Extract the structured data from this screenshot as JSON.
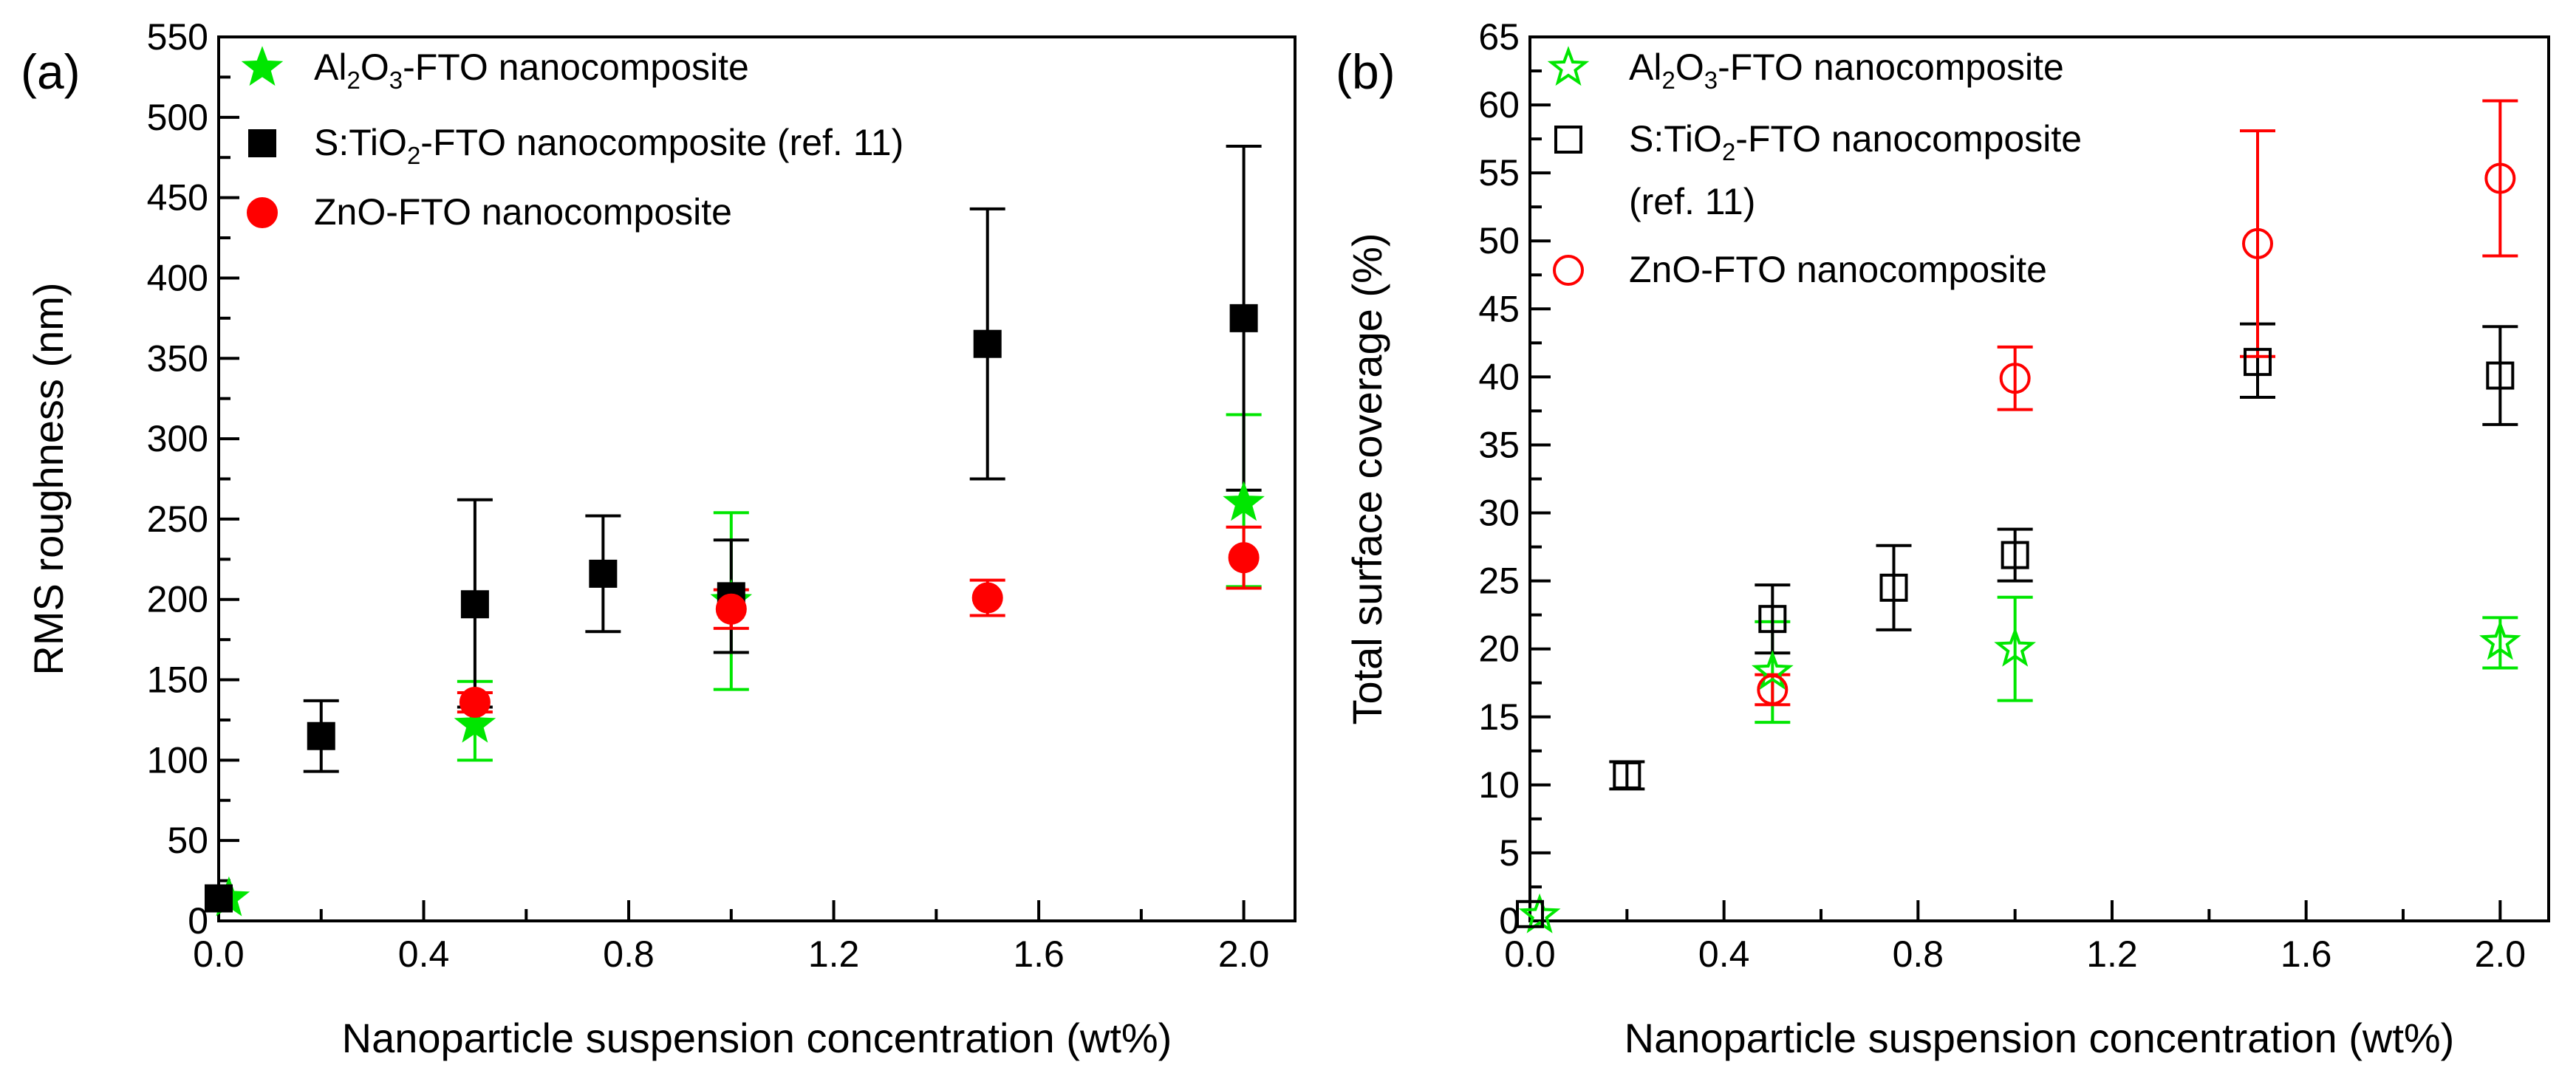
{
  "chart_data": [
    {
      "type": "scatter",
      "panel_label": "(a)",
      "xlabel": "Nanoparticle suspension concentration (wt%)",
      "ylabel": "RMS roughness (nm)",
      "xlim": [
        0.0,
        2.1
      ],
      "ylim": [
        0,
        550
      ],
      "x_ticks": [
        0.0,
        0.4,
        0.8,
        1.2,
        1.6,
        2.0
      ],
      "x_tick_labels": [
        "0.0",
        "0.4",
        "0.8",
        "1.2",
        "1.6",
        "2.0"
      ],
      "y_ticks": [
        0,
        50,
        100,
        150,
        200,
        250,
        300,
        350,
        400,
        450,
        500,
        550
      ],
      "y_tick_labels": [
        "0",
        "50",
        "100",
        "150",
        "200",
        "250",
        "300",
        "350",
        "400",
        "450",
        "500",
        "550"
      ],
      "legend_location": "top-left",
      "series": [
        {
          "name": "Al2O3-FTO nanocomposite",
          "legend_parts": [
            "Al",
            "2",
            "O",
            "3",
            "-FTO nanocomposite"
          ],
          "marker": "star",
          "filled": true,
          "color": "#00e600",
          "x": [
            0.02,
            0.5,
            1.0,
            2.0
          ],
          "y": [
            14,
            122,
            199,
            260
          ],
          "err_low": [
            0,
            22,
            55,
            52
          ],
          "err_high": [
            0,
            27,
            55,
            55
          ]
        },
        {
          "name": "S:TiO2-FTO nanocomposite (ref. 11)",
          "legend_parts": [
            "S:TiO",
            "2",
            "-FTO nanocomposite (ref. 11)"
          ],
          "marker": "square",
          "filled": true,
          "color": "#000000",
          "x": [
            0.0,
            0.2,
            0.5,
            0.75,
            1.0,
            1.5,
            2.0
          ],
          "y": [
            14,
            115,
            197,
            216,
            202,
            359,
            375
          ],
          "err_low": [
            0,
            22,
            64,
            36,
            35,
            84,
            107
          ],
          "err_high": [
            0,
            22,
            65,
            36,
            35,
            84,
            107
          ]
        },
        {
          "name": "ZnO-FTO nanocomposite",
          "legend_parts": [
            "ZnO-FTO nanocomposite"
          ],
          "marker": "circle",
          "filled": true,
          "color": "#ff0000",
          "x": [
            0.5,
            1.0,
            1.5,
            2.0
          ],
          "y": [
            136,
            194,
            201,
            226
          ],
          "err_low": [
            6,
            12,
            11,
            19
          ],
          "err_high": [
            6,
            12,
            11,
            19
          ]
        }
      ]
    },
    {
      "type": "scatter",
      "panel_label": "(b)",
      "xlabel": "Nanoparticle suspension concentration (wt%)",
      "ylabel": "Total surface coverage (%)",
      "xlim": [
        0.0,
        2.1
      ],
      "ylim": [
        0,
        65
      ],
      "x_ticks": [
        0.0,
        0.4,
        0.8,
        1.2,
        1.6,
        2.0
      ],
      "x_tick_labels": [
        "0.0",
        "0.4",
        "0.8",
        "1.2",
        "1.6",
        "2.0"
      ],
      "y_ticks": [
        0,
        5,
        10,
        15,
        20,
        25,
        30,
        35,
        40,
        45,
        50,
        55,
        60,
        65
      ],
      "y_tick_labels": [
        "0",
        "5",
        "10",
        "15",
        "20",
        "25",
        "30",
        "35",
        "40",
        "45",
        "50",
        "55",
        "60",
        "65"
      ],
      "legend_location": "top-left",
      "series": [
        {
          "name": "Al2O3-FTO nanocomposite",
          "legend_parts": [
            "Al",
            "2",
            "O",
            "3",
            "-FTO nanocomposite"
          ],
          "marker": "star",
          "filled": false,
          "color": "#00e600",
          "x": [
            0.02,
            0.5,
            1.0,
            2.0
          ],
          "y": [
            0.4,
            18.3,
            20.0,
            20.5
          ],
          "err_low": [
            0,
            3.7,
            3.8,
            1.9
          ],
          "err_high": [
            0,
            3.7,
            3.8,
            1.8
          ]
        },
        {
          "name": "S:TiO2-FTO nanocomposite (ref. 11)",
          "legend_parts": [
            "S:TiO",
            "2",
            "-FTO nanocomposite"
          ],
          "legend_line2": "(ref. 11)",
          "marker": "square",
          "filled": false,
          "color": "#000000",
          "x": [
            0.0,
            0.2,
            0.5,
            0.75,
            1.0,
            1.5,
            2.0
          ],
          "y": [
            0.5,
            10.7,
            22.2,
            24.5,
            26.9,
            41.1,
            40.1
          ],
          "err_low": [
            0,
            1.0,
            2.5,
            3.1,
            1.9,
            2.6,
            3.6
          ],
          "err_high": [
            0,
            1.0,
            2.5,
            3.1,
            1.9,
            2.8,
            3.6
          ]
        },
        {
          "name": "ZnO-FTO nanocomposite",
          "legend_parts": [
            "ZnO-FTO nanocomposite"
          ],
          "marker": "circle",
          "filled": false,
          "color": "#ff0000",
          "x": [
            0.5,
            1.0,
            1.5,
            2.0
          ],
          "y": [
            17.0,
            39.9,
            49.8,
            54.6
          ],
          "err_low": [
            1.1,
            2.3,
            8.3,
            5.7
          ],
          "err_high": [
            1.1,
            2.3,
            8.3,
            5.7
          ]
        }
      ]
    }
  ]
}
